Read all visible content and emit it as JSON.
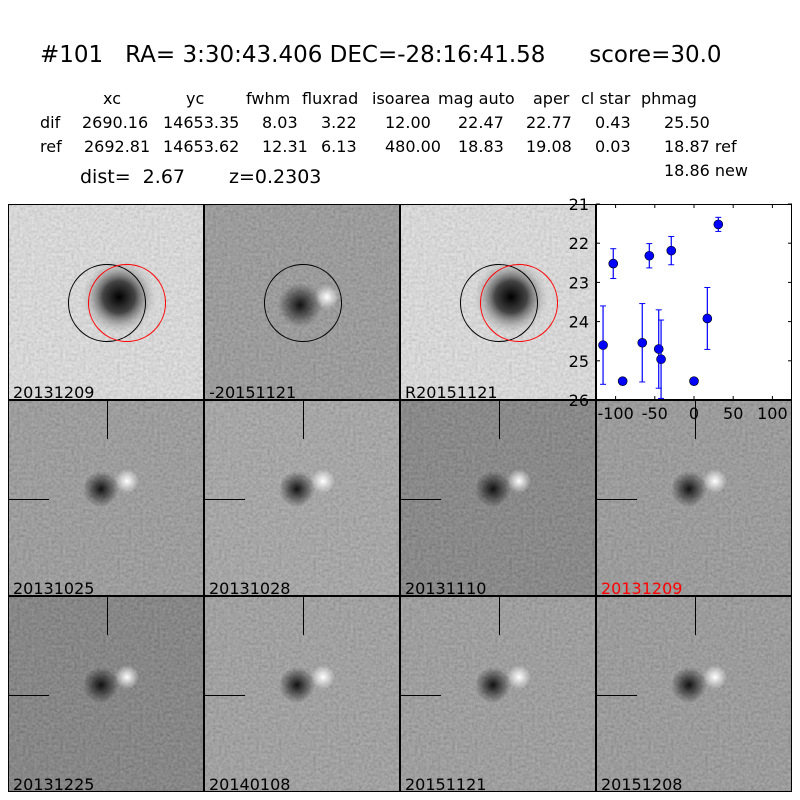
{
  "title": "#101   RA= 3:30:43.406 DEC=-28:16:41.58      score=30.0",
  "table": {
    "headers": [
      "xc",
      "yc",
      "fwhm",
      "fluxrad",
      "isoarea",
      "mag auto",
      "aper",
      "cl star",
      "phmag"
    ],
    "rows": [
      {
        "label": "dif",
        "values": [
          "2690.16",
          "14653.35",
          "8.03",
          "3.22",
          "12.00",
          "22.47",
          "22.77",
          "0.43",
          "25.50"
        ]
      },
      {
        "label": "ref",
        "values": [
          "2692.81",
          "14653.62",
          "12.31",
          "6.13",
          "480.00",
          "18.83",
          "19.08",
          "0.03",
          "18.87 ref"
        ]
      }
    ],
    "extra_phmag": "18.86 new"
  },
  "dist": "dist=  2.67",
  "z": "z=0.2303",
  "top_stamps": [
    {
      "label": "20131209",
      "circles": [
        "black",
        "red"
      ]
    },
    {
      "label": "-20151121",
      "circles": [
        "black"
      ]
    },
    {
      "label": "R20151121",
      "circles": [
        "black",
        "red"
      ]
    }
  ],
  "epoch_stamps": [
    {
      "label": "20131025",
      "label_color": "#000000"
    },
    {
      "label": "20131028",
      "label_color": "#000000"
    },
    {
      "label": "20131110",
      "label_color": "#000000"
    },
    {
      "label": "20131209",
      "label_color": "#ff0000"
    },
    {
      "label": "20131225",
      "label_color": "#000000"
    },
    {
      "label": "20140108",
      "label_color": "#000000"
    },
    {
      "label": "20151121",
      "label_color": "#000000"
    },
    {
      "label": "20151208",
      "label_color": "#000000"
    }
  ],
  "chart_data": {
    "type": "scatter",
    "error_bars": true,
    "color": "#0000ff",
    "xlim": [
      -125,
      125
    ],
    "ylim": [
      26,
      21
    ],
    "y_inverted": true,
    "xticks": [
      -100,
      -50,
      0,
      50,
      100
    ],
    "yticks": [
      21,
      22,
      23,
      24,
      25,
      26
    ],
    "points": [
      {
        "x": -116,
        "y": 24.6,
        "err": 1.0
      },
      {
        "x": -91,
        "y": 25.52,
        "err": 0.05
      },
      {
        "x": -103,
        "y": 22.52,
        "err": 0.38
      },
      {
        "x": -66,
        "y": 24.54,
        "err": 1.0
      },
      {
        "x": -57,
        "y": 22.32,
        "err": 0.31
      },
      {
        "x": -45,
        "y": 24.7,
        "err": 1.0
      },
      {
        "x": -42,
        "y": 24.96,
        "err": 1.0
      },
      {
        "x": -29,
        "y": 22.19,
        "err": 0.36
      },
      {
        "x": 0,
        "y": 25.52,
        "err": 0.05
      },
      {
        "x": 17,
        "y": 23.92,
        "err": 0.79
      },
      {
        "x": 31,
        "y": 21.52,
        "err": 0.18
      }
    ]
  }
}
